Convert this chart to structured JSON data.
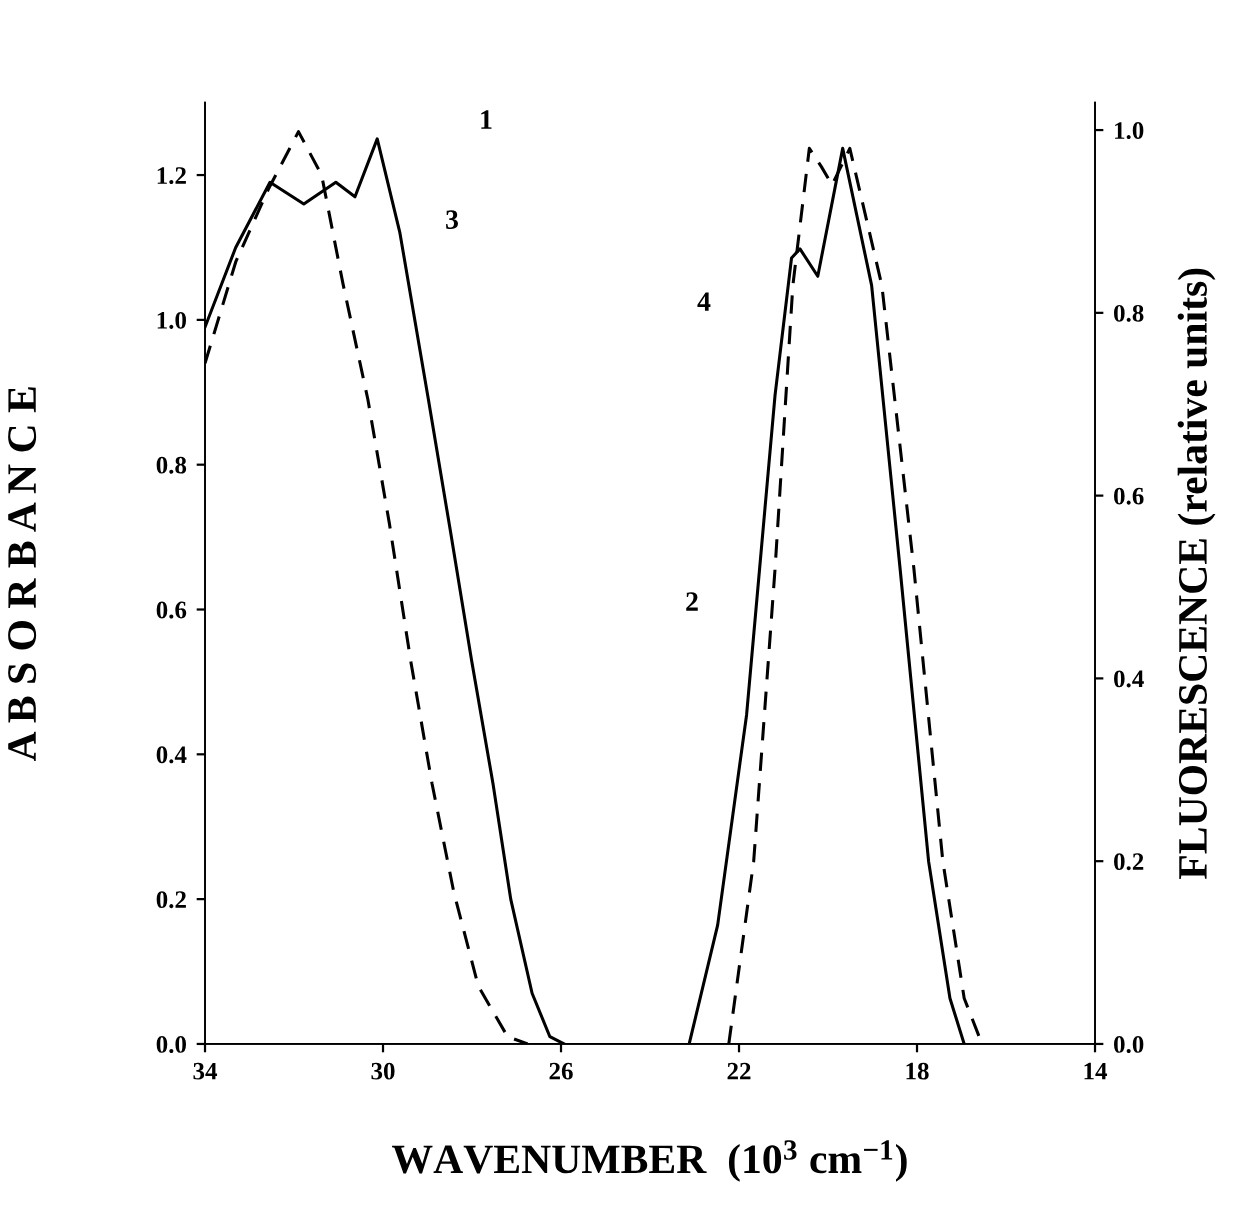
{
  "chart_data": {
    "type": "line",
    "xlabel": "WAVENUMBER  (10$^{3}$ cm$^{−1}$)",
    "ylabel": "A B S O R B A N C E",
    "y2label": "FLUORESCENCE (relative units)",
    "xlim": [
      34,
      14
    ],
    "xticks": [
      34,
      30,
      26,
      22,
      18,
      14
    ],
    "ylim": [
      0,
      1.3
    ],
    "yticks": [
      {
        "value": 0,
        "label": "0.0"
      },
      0.2,
      0.4,
      0.6,
      0.8,
      {
        "value": 1,
        "label": "1.0"
      },
      1.2
    ],
    "y2lim": [
      0,
      1.03
    ],
    "y2ticks": [
      {
        "value": 0,
        "label": "0.0"
      },
      0.2,
      0.4,
      0.6,
      0.8,
      {
        "value": 1,
        "label": "1.0"
      }
    ],
    "grid": false,
    "legend": false,
    "marker": "none",
    "series": [
      {
        "color": "#000000",
        "line_style": "solid",
        "x": [
          34,
          33.31,
          32.54,
          31.78,
          31.06,
          30.63,
          30.13,
          29.62,
          28.98,
          28.49,
          28.01,
          27.53,
          27.13,
          26.65,
          26.25,
          25.93
        ],
        "values": [
          0.99,
          1.1,
          1.19,
          1.16,
          1.19,
          1.17,
          1.25,
          1.12,
          0.89,
          0.71,
          0.53,
          0.36,
          0.2,
          0.07,
          0.01,
          0
        ]
      },
      {
        "color": "#000000",
        "line_style": "dashed",
        "x": [
          34,
          33.31,
          32.58,
          31.9,
          31.38,
          30.9,
          30.34,
          29.86,
          29.38,
          28.9,
          28.41,
          27.86,
          27.2,
          26.75
        ],
        "values": [
          0.94,
          1.08,
          1.18,
          1.26,
          1.2,
          1.05,
          0.89,
          0.72,
          0.53,
          0.36,
          0.21,
          0.08,
          0.01,
          0
        ]
      },
      {
        "color": "#000000",
        "line_style": "solid",
        "axis": "y2",
        "x": [
          23.12,
          22.48,
          21.83,
          21.19,
          20.82,
          20.63,
          20.23,
          19.67,
          19.02,
          18.38,
          17.74,
          17.26,
          16.94
        ],
        "values": [
          0,
          0.13,
          0.36,
          0.71,
          0.86,
          0.87,
          0.84,
          0.98,
          0.83,
          0.52,
          0.2,
          0.05,
          0
        ]
      },
      {
        "color": "#000000",
        "line_style": "dashed",
        "axis": "y2",
        "x": [
          22.23,
          21.67,
          21.19,
          20.79,
          20.42,
          20.15,
          19.91,
          19.51,
          18.79,
          18.07,
          17.42,
          16.94,
          16.54
        ],
        "values": [
          0,
          0.2,
          0.52,
          0.83,
          0.98,
          0.96,
          0.94,
          0.98,
          0.83,
          0.52,
          0.2,
          0.05,
          0
        ]
      }
    ],
    "annotations": [
      "1",
      "3",
      "4",
      "2"
    ]
  }
}
